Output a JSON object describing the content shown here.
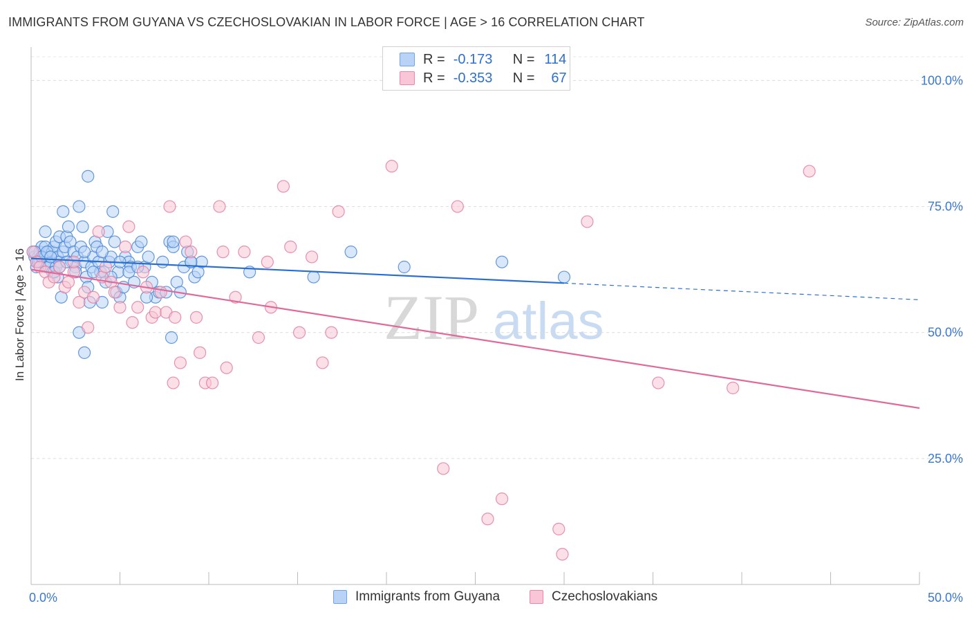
{
  "title": "IMMIGRANTS FROM GUYANA VS CZECHOSLOVAKIAN IN LABOR FORCE | AGE > 16 CORRELATION CHART",
  "source": "Source: ZipAtlas.com",
  "watermark": "ZIPatlas",
  "legend": {
    "r_label": "R =",
    "n_label": "N =",
    "series": [
      {
        "name": "Immigrants from Guyana",
        "r": "-0.173",
        "n": "114",
        "color": "#6fa3e6",
        "fill": "#b8d3f5"
      },
      {
        "name": "Czechoslovakians",
        "r": "-0.353",
        "n": "67",
        "color": "#e888a8",
        "fill": "#f8c6d6"
      }
    ]
  },
  "chart_data": {
    "type": "scatter",
    "title": "IMMIGRANTS FROM GUYANA VS CZECHOSLOVAKIAN IN LABOR FORCE | AGE > 16 CORRELATION CHART",
    "xlabel": "",
    "ylabel": "In Labor Force | Age > 16",
    "xlim": [
      0,
      50
    ],
    "ylim": [
      0,
      105
    ],
    "x_tick_labels": [
      "0.0%",
      "50.0%"
    ],
    "y_tick_values": [
      25,
      50,
      75,
      100
    ],
    "y_tick_labels": [
      "25.0%",
      "50.0%",
      "75.0%",
      "100.0%"
    ],
    "grid": "horizontal dashed",
    "series": [
      {
        "name": "Immigrants from Guyana",
        "color": "#4a86d8",
        "trend": {
          "x0": 0,
          "y0": 64.7,
          "x1": 30,
          "y1": 59.8,
          "dash_to_x": 50,
          "dash_to_y": 56.5,
          "line_color": "#2a6fcf"
        },
        "points": [
          [
            0.1,
            66
          ],
          [
            0.2,
            65
          ],
          [
            0.3,
            64
          ],
          [
            0.4,
            65
          ],
          [
            0.5,
            66
          ],
          [
            0.6,
            67
          ],
          [
            0.7,
            64
          ],
          [
            0.8,
            65
          ],
          [
            0.9,
            63
          ],
          [
            1.0,
            66
          ],
          [
            0.3,
            63
          ],
          [
            0.5,
            64
          ],
          [
            0.6,
            65
          ],
          [
            0.8,
            67
          ],
          [
            1.1,
            64
          ],
          [
            1.2,
            66
          ],
          [
            1.3,
            67
          ],
          [
            1.4,
            68
          ],
          [
            1.5,
            65
          ],
          [
            1.6,
            69
          ],
          [
            0.8,
            70
          ],
          [
            1.0,
            63
          ],
          [
            1.2,
            62
          ],
          [
            1.4,
            63
          ],
          [
            1.6,
            64
          ],
          [
            1.8,
            66
          ],
          [
            1.9,
            67
          ],
          [
            2.0,
            69
          ],
          [
            2.1,
            71
          ],
          [
            2.2,
            68
          ],
          [
            1.5,
            61
          ],
          [
            1.7,
            57
          ],
          [
            1.8,
            74
          ],
          [
            2.3,
            64
          ],
          [
            2.4,
            66
          ],
          [
            2.5,
            63
          ],
          [
            2.6,
            65
          ],
          [
            2.7,
            75
          ],
          [
            2.8,
            67
          ],
          [
            2.9,
            71
          ],
          [
            3.0,
            64
          ],
          [
            3.1,
            61
          ],
          [
            3.2,
            59
          ],
          [
            3.3,
            56
          ],
          [
            3.4,
            63
          ],
          [
            3.5,
            65
          ],
          [
            3.6,
            68
          ],
          [
            3.7,
            67
          ],
          [
            3.8,
            64
          ],
          [
            3.9,
            62
          ],
          [
            3.2,
            81
          ],
          [
            3.0,
            46
          ],
          [
            2.7,
            50
          ],
          [
            4.0,
            56
          ],
          [
            4.1,
            62
          ],
          [
            4.2,
            60
          ],
          [
            4.3,
            70
          ],
          [
            4.4,
            64
          ],
          [
            4.5,
            65
          ],
          [
            4.6,
            74
          ],
          [
            4.7,
            68
          ],
          [
            4.8,
            58
          ],
          [
            4.9,
            62
          ],
          [
            5.0,
            57
          ],
          [
            5.2,
            59
          ],
          [
            5.3,
            65
          ],
          [
            5.5,
            64
          ],
          [
            5.6,
            63
          ],
          [
            5.8,
            60
          ],
          [
            6.0,
            67
          ],
          [
            6.2,
            68
          ],
          [
            6.4,
            63
          ],
          [
            6.6,
            65
          ],
          [
            6.8,
            60
          ],
          [
            7.0,
            57
          ],
          [
            7.2,
            58
          ],
          [
            7.4,
            64
          ],
          [
            7.6,
            58
          ],
          [
            7.8,
            68
          ],
          [
            8.0,
            67
          ],
          [
            8.2,
            60
          ],
          [
            8.4,
            58
          ],
          [
            8.6,
            63
          ],
          [
            8.8,
            66
          ],
          [
            9.0,
            64
          ],
          [
            9.2,
            61
          ],
          [
            9.4,
            62
          ],
          [
            9.6,
            64
          ],
          [
            7.9,
            49
          ],
          [
            8.0,
            68
          ],
          [
            12.3,
            62
          ],
          [
            15.9,
            61
          ],
          [
            18.0,
            66
          ],
          [
            21.0,
            63
          ],
          [
            26.5,
            64
          ],
          [
            30.0,
            61
          ],
          [
            0.2,
            66
          ],
          [
            0.4,
            64
          ],
          [
            0.6,
            65
          ],
          [
            0.9,
            66
          ],
          [
            1.1,
            65
          ],
          [
            1.3,
            62
          ],
          [
            1.6,
            63
          ],
          [
            2.0,
            64
          ],
          [
            2.5,
            62
          ],
          [
            3.0,
            66
          ],
          [
            3.5,
            62
          ],
          [
            4.0,
            66
          ],
          [
            4.5,
            61
          ],
          [
            5.0,
            64
          ],
          [
            5.5,
            62
          ],
          [
            6.0,
            63
          ],
          [
            6.5,
            57
          ],
          [
            9.0,
            64
          ]
        ]
      },
      {
        "name": "Czechoslovakians",
        "color": "#e37ea0",
        "trend": {
          "x0": 0,
          "y0": 62.5,
          "x1": 50,
          "y1": 35.0,
          "line_color": "#e0699a"
        },
        "points": [
          [
            0.1,
            66
          ],
          [
            0.3,
            64
          ],
          [
            0.5,
            63
          ],
          [
            0.8,
            62
          ],
          [
            1.0,
            60
          ],
          [
            1.3,
            61
          ],
          [
            1.6,
            63
          ],
          [
            1.9,
            59
          ],
          [
            2.1,
            60
          ],
          [
            2.4,
            62
          ],
          [
            2.7,
            56
          ],
          [
            3.0,
            58
          ],
          [
            3.2,
            51
          ],
          [
            3.5,
            57
          ],
          [
            3.8,
            70
          ],
          [
            4.0,
            61
          ],
          [
            4.2,
            63
          ],
          [
            4.5,
            60
          ],
          [
            4.7,
            58
          ],
          [
            5.0,
            55
          ],
          [
            5.3,
            67
          ],
          [
            5.5,
            71
          ],
          [
            5.7,
            52
          ],
          [
            6.0,
            55
          ],
          [
            6.3,
            62
          ],
          [
            6.5,
            59
          ],
          [
            6.8,
            53
          ],
          [
            7.0,
            54
          ],
          [
            7.3,
            58
          ],
          [
            7.6,
            54
          ],
          [
            7.8,
            75
          ],
          [
            8.1,
            53
          ],
          [
            8.4,
            44
          ],
          [
            8.7,
            68
          ],
          [
            9.0,
            66
          ],
          [
            9.3,
            53
          ],
          [
            9.5,
            46
          ],
          [
            9.8,
            40
          ],
          [
            10.2,
            40
          ],
          [
            10.6,
            75
          ],
          [
            10.8,
            66
          ],
          [
            11.0,
            43
          ],
          [
            11.5,
            57
          ],
          [
            12.0,
            66
          ],
          [
            12.8,
            49
          ],
          [
            13.3,
            64
          ],
          [
            13.5,
            55
          ],
          [
            14.2,
            79
          ],
          [
            14.6,
            67
          ],
          [
            15.1,
            50
          ],
          [
            15.8,
            65
          ],
          [
            16.4,
            44
          ],
          [
            16.9,
            50
          ],
          [
            17.3,
            74
          ],
          [
            20.3,
            83
          ],
          [
            23.2,
            23
          ],
          [
            24.0,
            75
          ],
          [
            25.7,
            13
          ],
          [
            26.5,
            17
          ],
          [
            29.7,
            11
          ],
          [
            31.3,
            72
          ],
          [
            35.3,
            40
          ],
          [
            39.5,
            39
          ],
          [
            43.8,
            82
          ],
          [
            29.9,
            6
          ],
          [
            8.0,
            40
          ],
          [
            2.4,
            64
          ]
        ]
      }
    ]
  }
}
